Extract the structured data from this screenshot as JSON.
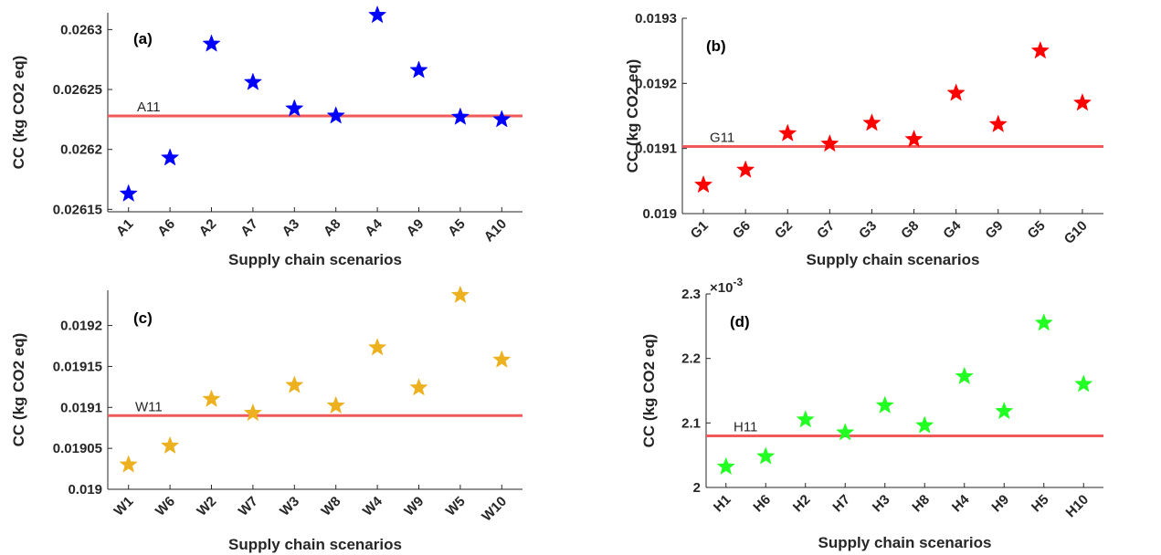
{
  "figure": {
    "background": "#ffffff",
    "ref_line_color": "#f05a5a"
  },
  "chart_data": [
    {
      "type": "scatter",
      "panel_label": "(a)",
      "marker": "star",
      "color": "#0000ff",
      "categories": [
        "A1",
        "A6",
        "A2",
        "A7",
        "A3",
        "A8",
        "A4",
        "A9",
        "A5",
        "A10"
      ],
      "values": [
        0.026163,
        0.026193,
        0.026288,
        0.026256,
        0.026234,
        0.026228,
        0.026312,
        0.026266,
        0.026227,
        0.026225
      ],
      "reference": {
        "label": "A11",
        "value": 0.026228
      },
      "xlabel": "Supply chain scenarios",
      "ylabel": "CC (kg CO2 eq)",
      "ylim": [
        0.026148,
        0.026314
      ],
      "yticks": [
        0.02615,
        0.0262,
        0.02625,
        0.0263
      ],
      "ytick_labels": [
        "0.02615",
        "0.0262",
        "0.02625",
        "0.0263"
      ],
      "exponent_label": "",
      "grid": false
    },
    {
      "type": "scatter",
      "panel_label": "(b)",
      "marker": "star",
      "color": "#ff0000",
      "categories": [
        "G1",
        "G6",
        "G2",
        "G7",
        "G3",
        "G8",
        "G4",
        "G9",
        "G5",
        "G10"
      ],
      "values": [
        0.019044,
        0.019067,
        0.019123,
        0.019107,
        0.019139,
        0.019114,
        0.019185,
        0.019137,
        0.01925,
        0.01917
      ],
      "reference": {
        "label": "G11",
        "value": 0.019103
      },
      "xlabel": "Supply chain scenarios",
      "ylabel": "CC (kg CO2 eq)",
      "ylim": [
        0.019,
        0.0193
      ],
      "yticks": [
        0.019,
        0.0191,
        0.0192,
        0.0193
      ],
      "ytick_labels": [
        "0.019",
        "0.0191",
        "0.0192",
        "0.0193"
      ],
      "exponent_label": "",
      "grid": false
    },
    {
      "type": "scatter",
      "panel_label": "(c)",
      "marker": "star",
      "color": "#edb120",
      "categories": [
        "W1",
        "W6",
        "W2",
        "W7",
        "W3",
        "W8",
        "W4",
        "W9",
        "W5",
        "W10"
      ],
      "values": [
        0.01903,
        0.019053,
        0.01911,
        0.019093,
        0.019127,
        0.019102,
        0.019173,
        0.019124,
        0.019237,
        0.019158
      ],
      "reference": {
        "label": "W11",
        "value": 0.01909
      },
      "xlabel": "Supply chain scenarios",
      "ylabel": "CC (kg CO2 eq)",
      "ylim": [
        0.019,
        0.019243
      ],
      "yticks": [
        0.019,
        0.01905,
        0.0191,
        0.01915,
        0.0192
      ],
      "ytick_labels": [
        "0.019",
        "0.01905",
        "0.0191",
        "0.01915",
        "0.0192"
      ],
      "exponent_label": "",
      "grid": false
    },
    {
      "type": "scatter",
      "panel_label": "(d)",
      "marker": "star",
      "color": "#22ff22",
      "categories": [
        "H1",
        "H6",
        "H2",
        "H7",
        "H3",
        "H8",
        "H4",
        "H9",
        "H5",
        "H10"
      ],
      "values": [
        2.032,
        2.048,
        2.105,
        2.085,
        2.127,
        2.096,
        2.172,
        2.118,
        2.255,
        2.16
      ],
      "reference": {
        "label": "H11",
        "value": 2.08
      },
      "xlabel": "Supply chain scenarios",
      "ylabel": "CC (kg CO2 eq)",
      "ylim": [
        2.0,
        2.3
      ],
      "yticks": [
        2.0,
        2.1,
        2.2,
        2.3
      ],
      "ytick_labels": [
        "2",
        "2.1",
        "2.2",
        "2.3"
      ],
      "exponent_label": "×10",
      "exponent_power": "-3",
      "grid": false
    }
  ]
}
